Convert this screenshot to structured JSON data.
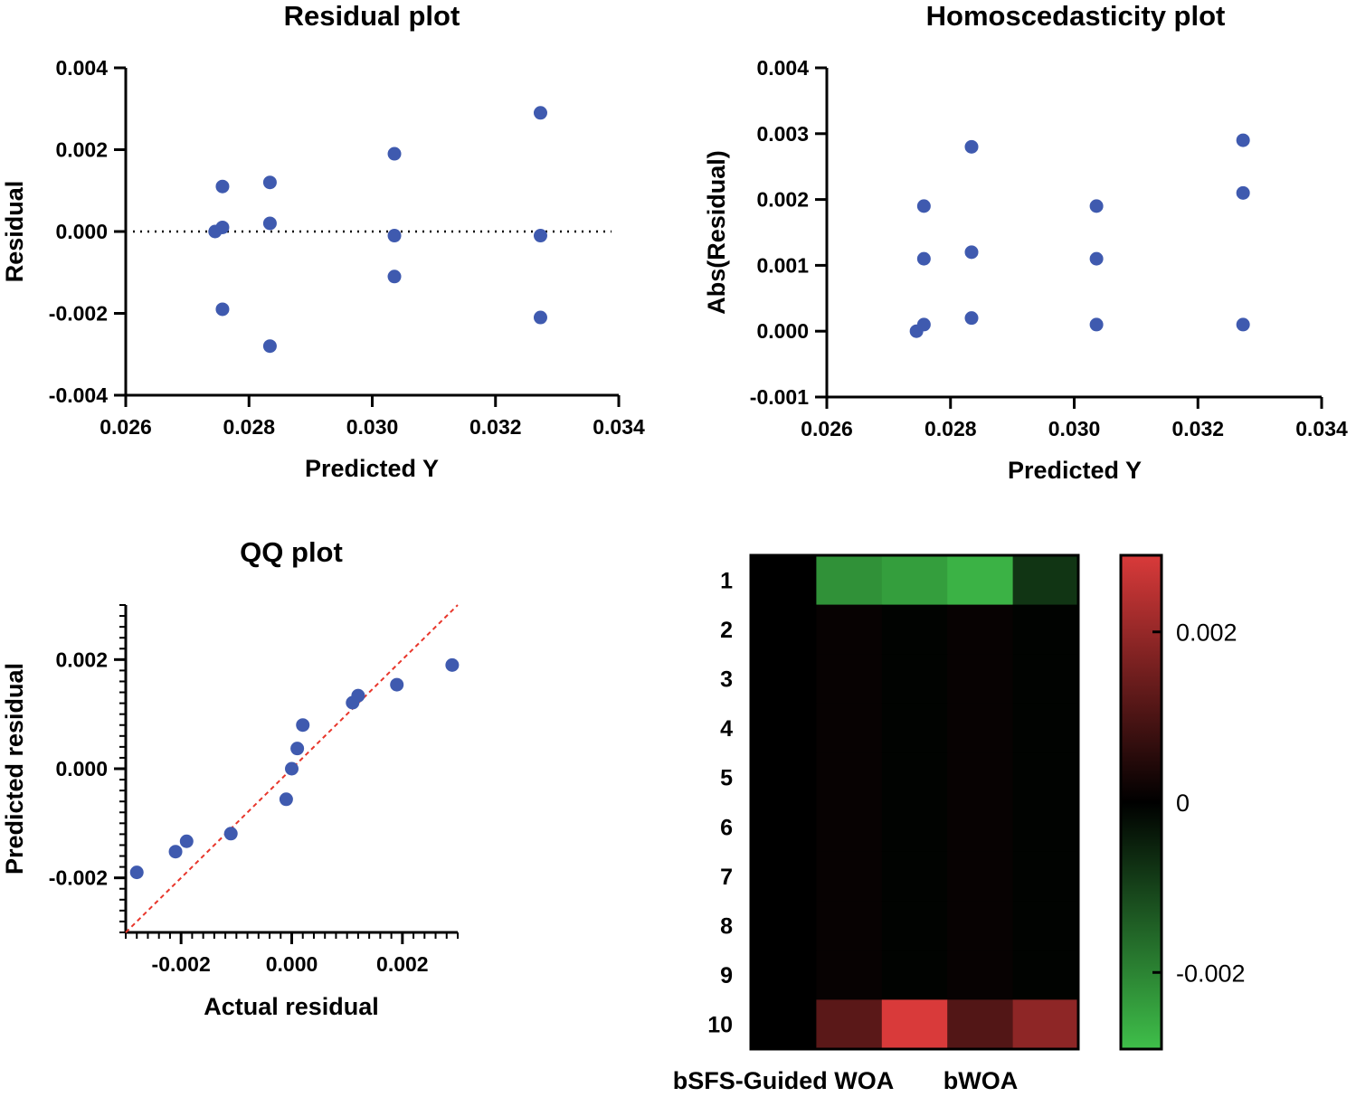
{
  "colors": {
    "point": "#3f5aaf",
    "ref_line": "#e8362b",
    "heat_low": "#3fbf4a",
    "heat_mid": "#000000",
    "heat_high": "#d93a3a"
  },
  "chart_data": [
    {
      "id": "residual",
      "type": "scatter",
      "title": "Residual plot",
      "xlabel": "Predicted Y",
      "ylabel": "Residual",
      "xlim": [
        0.026,
        0.034
      ],
      "ylim": [
        -0.004,
        0.004
      ],
      "xticks": [
        0.026,
        0.028,
        0.03,
        0.032,
        0.034
      ],
      "xticklabels": [
        "0.026",
        "0.028",
        "0.030",
        "0.032",
        "0.034"
      ],
      "yticks": [
        0.004,
        0.002,
        0.0,
        -0.002,
        -0.004
      ],
      "yticklabels": [
        "0.004",
        "0.002",
        "0.000",
        "-0.002",
        "-0.004"
      ],
      "zero_line": 0,
      "points": [
        {
          "x": 0.02745,
          "y": 0.0
        },
        {
          "x": 0.02757,
          "y": 0.0001
        },
        {
          "x": 0.02757,
          "y": 0.0011
        },
        {
          "x": 0.02757,
          "y": -0.0019
        },
        {
          "x": 0.02834,
          "y": 0.0012
        },
        {
          "x": 0.02834,
          "y": 0.0002
        },
        {
          "x": 0.02834,
          "y": -0.0028
        },
        {
          "x": 0.03036,
          "y": 0.0019
        },
        {
          "x": 0.03036,
          "y": -0.0001
        },
        {
          "x": 0.03036,
          "y": -0.0011
        },
        {
          "x": 0.03273,
          "y": 0.0029
        },
        {
          "x": 0.03273,
          "y": -0.0001
        },
        {
          "x": 0.03273,
          "y": -0.0021
        }
      ]
    },
    {
      "id": "homoscedasticity",
      "type": "scatter",
      "title": "Homoscedasticity plot",
      "xlabel": "Predicted Y",
      "ylabel": "Abs(Residual)",
      "xlim": [
        0.026,
        0.034
      ],
      "ylim": [
        -0.001,
        0.004
      ],
      "xticks": [
        0.026,
        0.028,
        0.03,
        0.032,
        0.034
      ],
      "xticklabels": [
        "0.026",
        "0.028",
        "0.030",
        "0.032",
        "0.034"
      ],
      "yticks": [
        0.004,
        0.003,
        0.002,
        0.001,
        0.0,
        -0.001
      ],
      "yticklabels": [
        "0.004",
        "0.003",
        "0.002",
        "0.001",
        "0.000",
        "-0.001"
      ],
      "points": [
        {
          "x": 0.02745,
          "y": 0.0
        },
        {
          "x": 0.02757,
          "y": 0.0001
        },
        {
          "x": 0.02757,
          "y": 0.0011
        },
        {
          "x": 0.02757,
          "y": 0.0019
        },
        {
          "x": 0.02834,
          "y": 0.0028
        },
        {
          "x": 0.02834,
          "y": 0.0012
        },
        {
          "x": 0.02834,
          "y": 0.0002
        },
        {
          "x": 0.03036,
          "y": 0.0019
        },
        {
          "x": 0.03036,
          "y": 0.0011
        },
        {
          "x": 0.03036,
          "y": 0.0001
        },
        {
          "x": 0.03273,
          "y": 0.0029
        },
        {
          "x": 0.03273,
          "y": 0.0021
        },
        {
          "x": 0.03273,
          "y": 0.0001
        }
      ]
    },
    {
      "id": "qq",
      "type": "scatter",
      "title": "QQ plot",
      "xlabel": "Actual residual",
      "ylabel": "Predicted residual",
      "xlim": [
        -0.003,
        0.003
      ],
      "ylim": [
        -0.003,
        0.003
      ],
      "xticks": [
        -0.002,
        0.0,
        0.002
      ],
      "xticklabels": [
        "-0.002",
        "0.000",
        "0.002"
      ],
      "yticks": [
        0.002,
        0.0,
        -0.002
      ],
      "yticklabels": [
        "0.002",
        "0.000",
        "-0.002"
      ],
      "reference_line": {
        "from": [
          -0.003,
          -0.003
        ],
        "to": [
          0.003,
          0.003
        ]
      },
      "points": [
        {
          "x": -0.0028,
          "y": -0.0019
        },
        {
          "x": -0.0021,
          "y": -0.00152
        },
        {
          "x": -0.0019,
          "y": -0.00133
        },
        {
          "x": -0.0011,
          "y": -0.00119
        },
        {
          "x": -0.0001,
          "y": -0.00056
        },
        {
          "x": 0.0,
          "y": 0.0
        },
        {
          "x": 0.0001,
          "y": 0.00037
        },
        {
          "x": 0.0002,
          "y": 0.0008
        },
        {
          "x": 0.0011,
          "y": 0.00121
        },
        {
          "x": 0.0012,
          "y": 0.00134
        },
        {
          "x": 0.0019,
          "y": 0.00154
        },
        {
          "x": 0.0029,
          "y": 0.0019
        }
      ]
    },
    {
      "id": "heatmap",
      "type": "heatmap",
      "rows": [
        "1",
        "2",
        "3",
        "4",
        "5",
        "6",
        "7",
        "8",
        "9",
        "10"
      ],
      "column_labels": [
        "bSFS-Guided WOA",
        "bWOA"
      ],
      "n_columns": 5,
      "values": [
        [
          0,
          -0.0022,
          -0.0024,
          -0.0027,
          -0.0008
        ],
        [
          0,
          0.0001,
          -5e-05,
          0.0001,
          -5e-05
        ],
        [
          0,
          0.0001,
          -5e-05,
          0.0001,
          -5e-05
        ],
        [
          0,
          0.0001,
          -5e-05,
          0.0001,
          -5e-05
        ],
        [
          0,
          0.0001,
          -5e-05,
          0.0001,
          -5e-05
        ],
        [
          0,
          0.0001,
          -5e-05,
          0.0001,
          -5e-05
        ],
        [
          0,
          0.0001,
          -5e-05,
          0.0001,
          -5e-05
        ],
        [
          0,
          0.0001,
          -5e-05,
          0.0001,
          -5e-05
        ],
        [
          0,
          0.0001,
          -5e-05,
          0.0001,
          -5e-05
        ],
        [
          0,
          0.0012,
          0.0029,
          0.0011,
          0.0019
        ]
      ],
      "colorbar": {
        "range": [
          -0.0029,
          0.0029
        ],
        "ticks": [
          0.002,
          0,
          -0.002
        ],
        "ticklabels": [
          "0.002",
          "0",
          "-0.002"
        ]
      }
    }
  ]
}
